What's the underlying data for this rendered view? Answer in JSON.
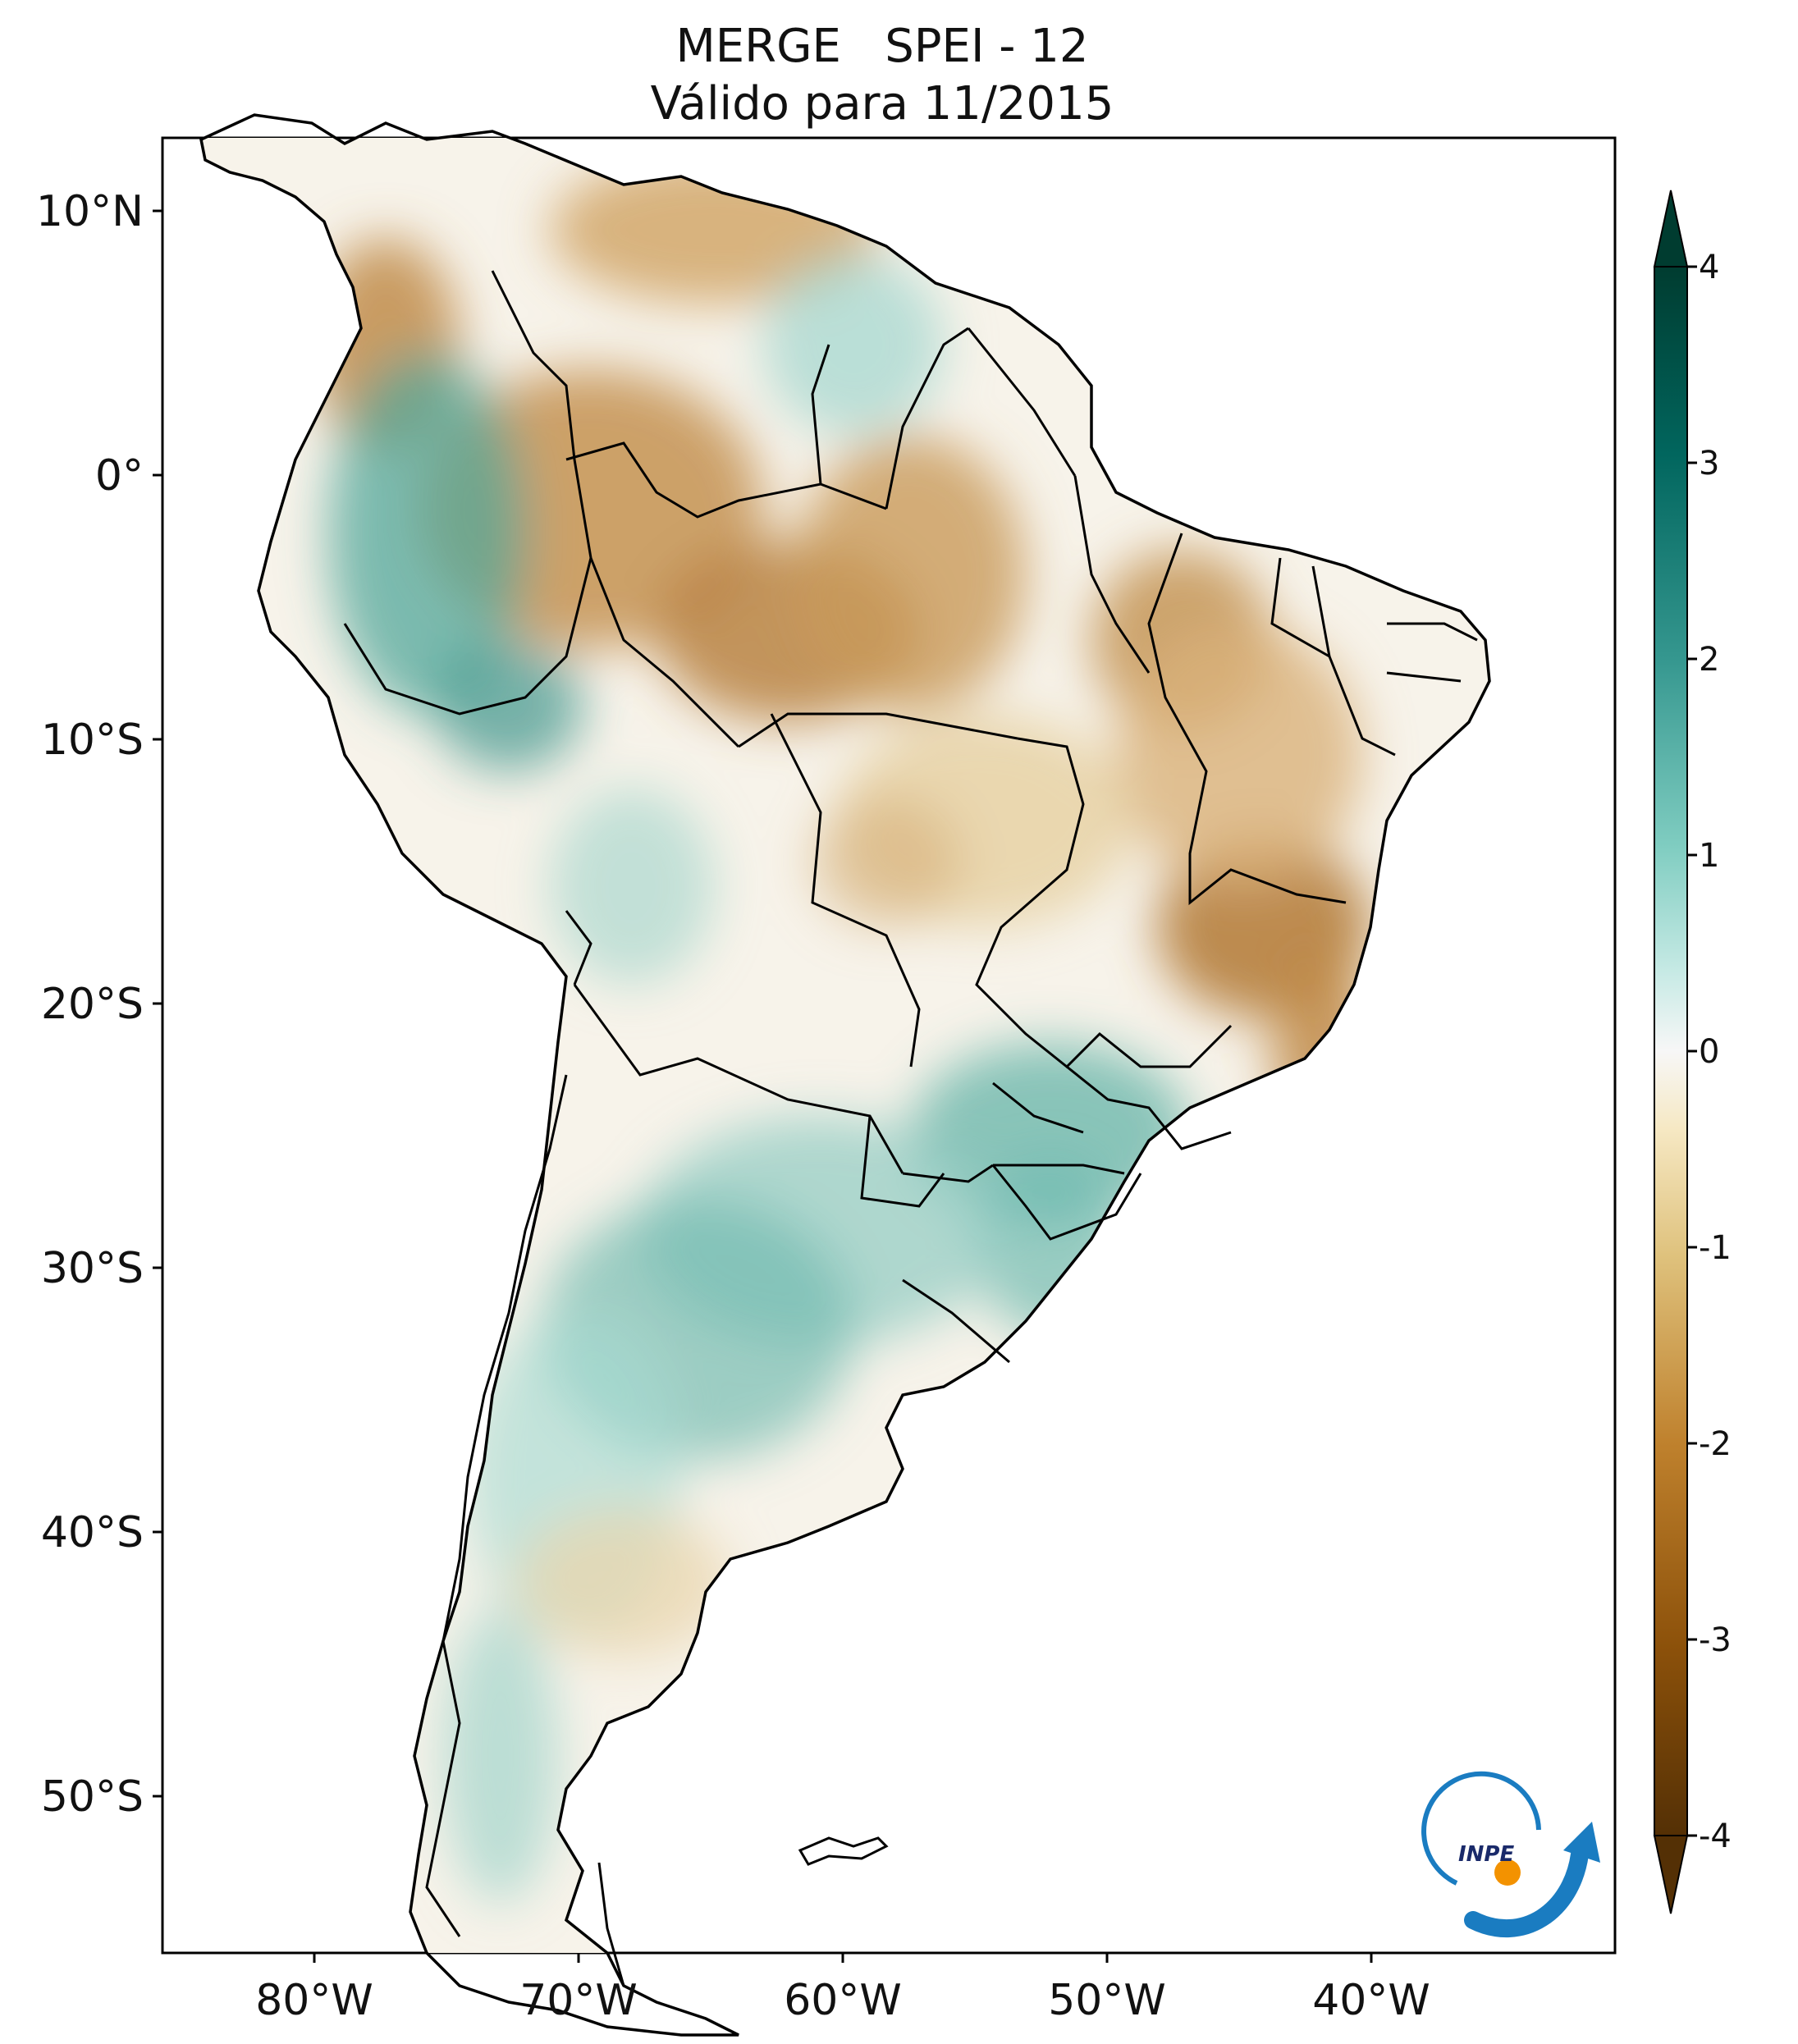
{
  "title": {
    "line1": "MERGE   SPEI - 12",
    "line2": "Válido para 11/2015"
  },
  "axes": {
    "lat_ticks": [
      "10°N",
      "0°",
      "10°S",
      "20°S",
      "30°S",
      "40°S",
      "50°S"
    ],
    "lon_ticks": [
      "80°W",
      "70°W",
      "60°W",
      "50°W",
      "40°W"
    ]
  },
  "colorbar": {
    "ticks": [
      "4",
      "3",
      "2",
      "1",
      "0",
      "-1",
      "-2",
      "-3",
      "-4"
    ],
    "range": [
      -4,
      4
    ],
    "extend": "both",
    "colors": {
      "min": "#543005",
      "dry_strong": "#8c510a",
      "dry": "#bf812d",
      "dry_light": "#dfc27d",
      "dry_faint": "#f6e8c3",
      "neutral": "#f5f5f5",
      "wet_faint": "#c7eae5",
      "wet_light": "#80cdc1",
      "wet": "#35978f",
      "wet_strong": "#01665e",
      "max": "#003c30"
    }
  },
  "logo": {
    "text": "INPE",
    "colors": {
      "arc": "#1a7cc1",
      "dot": "#f39200"
    }
  }
}
